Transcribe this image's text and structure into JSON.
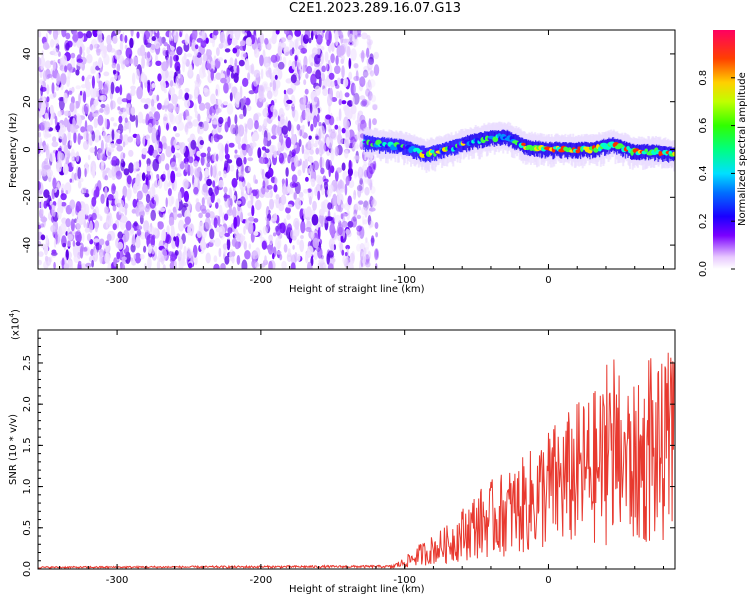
{
  "title": "C2E1.2023.289.16.07.G13",
  "chart_data": [
    {
      "type": "heatmap",
      "description_role": "spectrogram",
      "xlabel": "Height of straight line (km)",
      "ylabel": "Frequency (Hz)",
      "xlim": [
        -355,
        88
      ],
      "ylim": [
        -50,
        50
      ],
      "xticks": [
        -300,
        -200,
        -100,
        0
      ],
      "yticks": [
        -40,
        -20,
        0,
        20,
        40
      ],
      "ridge": {
        "x": [
          -128,
          -115,
          -100,
          -85,
          -70,
          -55,
          -40,
          -28,
          -15,
          0,
          15,
          30,
          45,
          60,
          75,
          88
        ],
        "y": [
          3,
          2,
          1,
          -2,
          0,
          3,
          5,
          5,
          1,
          0,
          0,
          0,
          2,
          -1,
          -1,
          -2
        ]
      },
      "noise_region_xmax": -125,
      "colorbar": {
        "label": "Normalized spectral amplitude",
        "ticks": [
          "0.0",
          "0.2",
          "0.4",
          "0.6",
          "0.8"
        ],
        "range": [
          0,
          1
        ]
      }
    },
    {
      "type": "line",
      "xlabel": "Height of straight line (km)",
      "ylabel": "SNR (10 * v/v)",
      "yscale_note": "(x10",
      "yscale_exp": "4",
      "yscale_close": ")",
      "xlim": [
        -355,
        88
      ],
      "ylim": [
        0,
        2.9
      ],
      "xticks": [
        -300,
        -200,
        -100,
        0
      ],
      "yticks": [
        "0.0",
        "0.5",
        "1.0",
        "1.5",
        "2.0",
        "2.5"
      ],
      "ytick_values": [
        0,
        0.5,
        1.0,
        1.5,
        2.0,
        2.5
      ],
      "envelope": {
        "x": [
          -355,
          -110,
          -100,
          -90,
          -70,
          -50,
          -30,
          -20,
          -10,
          0,
          10,
          20,
          30,
          40,
          50,
          60,
          70,
          80,
          88
        ],
        "y": [
          0.02,
          0.03,
          0.12,
          0.25,
          0.45,
          0.8,
          1.0,
          1.1,
          1.25,
          1.45,
          1.55,
          1.7,
          1.8,
          1.9,
          2.0,
          1.85,
          1.95,
          2.1,
          1.9
        ]
      },
      "color": "#e8392f"
    }
  ]
}
